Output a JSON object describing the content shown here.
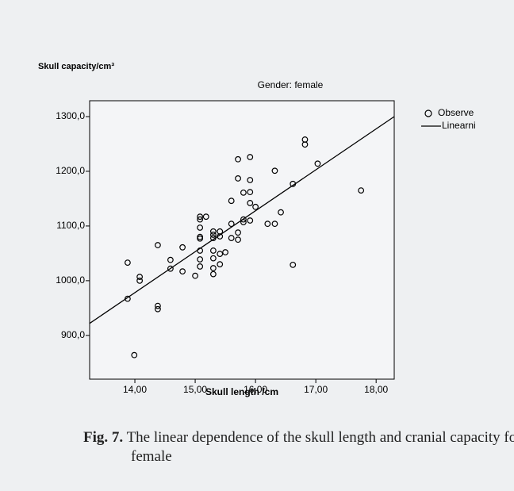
{
  "chart_data": {
    "type": "scatter",
    "title": "Gender: female",
    "y_label": "Skull capacity/cm³",
    "x_label": "Skull length /cm",
    "xlim": [
      13.25,
      18.3
    ],
    "ylim": [
      820,
      1329
    ],
    "xticks": [
      {
        "value": 14,
        "label": "14,00"
      },
      {
        "value": 15,
        "label": "15,00"
      },
      {
        "value": 16,
        "label": "16,00"
      },
      {
        "value": 17,
        "label": "17,00"
      },
      {
        "value": 18,
        "label": "18,00"
      }
    ],
    "yticks": [
      {
        "value": 900,
        "label": "900,0"
      },
      {
        "value": 1000,
        "label": "1000,0"
      },
      {
        "value": 1100,
        "label": "1100,0"
      },
      {
        "value": 1200,
        "label": "1200,0"
      },
      {
        "value": 1300,
        "label": "1300,0"
      }
    ],
    "legend": "right",
    "series": [
      {
        "name": "Observe",
        "color": "#000000",
        "mark": "circle",
        "x": [
          13.88,
          13.88,
          14.08,
          14.08,
          13.99,
          14.38,
          14.38,
          14.38,
          14.59,
          14.59,
          14.79,
          14.79,
          15.0,
          15.08,
          15.08,
          15.08,
          15.08,
          15.08,
          15.08,
          15.08,
          15.08,
          15.18,
          15.3,
          15.3,
          15.3,
          15.3,
          15.3,
          15.3,
          15.3,
          15.41,
          15.41,
          15.41,
          15.41,
          15.5,
          15.6,
          15.6,
          15.6,
          15.71,
          15.71,
          15.71,
          15.71,
          15.8,
          15.8,
          15.8,
          15.91,
          15.91,
          15.91,
          15.91,
          15.91,
          16.0,
          16.2,
          16.32,
          16.32,
          16.42,
          16.62,
          16.62,
          16.82,
          16.82,
          17.03,
          17.75
        ],
        "values": [
          1033,
          967,
          1007,
          1000,
          864,
          1065,
          954,
          948,
          1038,
          1022,
          1061,
          1017,
          1009,
          1117,
          1112,
          1097,
          1080,
          1077,
          1055,
          1039,
          1026,
          1117,
          1090,
          1084,
          1078,
          1055,
          1041,
          1023,
          1012,
          1090,
          1081,
          1049,
          1030,
          1052,
          1146,
          1104,
          1078,
          1222,
          1187,
          1088,
          1075,
          1161,
          1112,
          1107,
          1226,
          1184,
          1162,
          1142,
          1110,
          1135,
          1104,
          1104,
          1201,
          1125,
          1177,
          1029,
          1258,
          1249,
          1214,
          1165
        ]
      },
      {
        "name": "Linearni",
        "color": "#000000",
        "mark": "line",
        "x": [
          13.25,
          18.3
        ],
        "values": [
          922,
          1300
        ]
      }
    ]
  },
  "caption": {
    "label": "Fig. 7.",
    "text": "The linear dependence of the skull length and cranial capacity for female"
  }
}
